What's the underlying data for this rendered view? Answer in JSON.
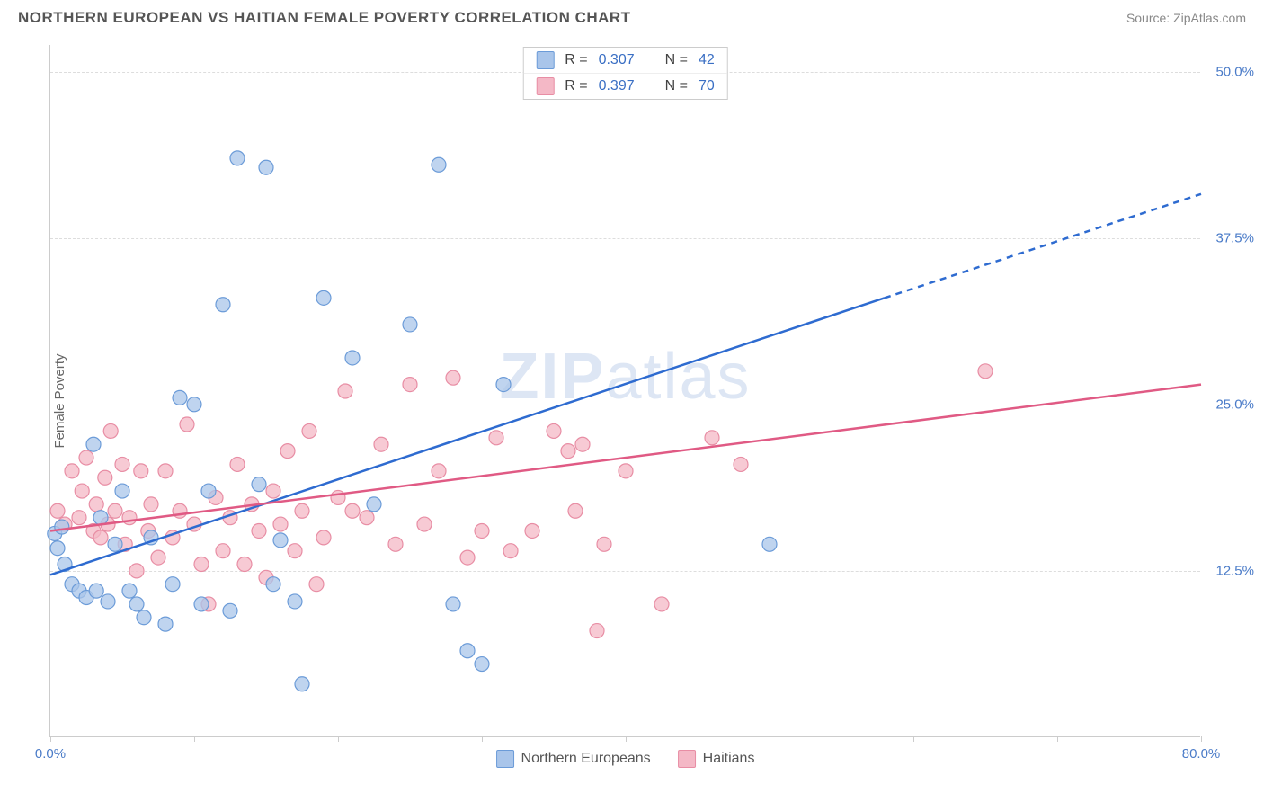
{
  "header": {
    "title": "NORTHERN EUROPEAN VS HAITIAN FEMALE POVERTY CORRELATION CHART",
    "source": "Source: ZipAtlas.com"
  },
  "chart": {
    "type": "scatter",
    "ylabel": "Female Poverty",
    "watermark_bold": "ZIP",
    "watermark_light": "atlas",
    "background_color": "#ffffff",
    "grid_color": "#dddddd",
    "axis_color": "#cccccc",
    "tick_label_color": "#4a7bc8",
    "xlim": [
      0,
      80
    ],
    "ylim": [
      0,
      52
    ],
    "xticks": [
      0,
      10,
      20,
      30,
      40,
      50,
      60,
      70,
      80
    ],
    "xtick_labels": {
      "0": "0.0%",
      "80": "80.0%"
    },
    "yticks": [
      12.5,
      25.0,
      37.5,
      50.0
    ],
    "ytick_labels": [
      "12.5%",
      "25.0%",
      "37.5%",
      "50.0%"
    ],
    "legend_top": [
      {
        "swatch_fill": "#a9c5ea",
        "swatch_stroke": "#6b9bd8",
        "r_label": "R =",
        "r_value": "0.307",
        "n_label": "N =",
        "n_value": "42"
      },
      {
        "swatch_fill": "#f4b8c6",
        "swatch_stroke": "#e88da4",
        "r_label": "R =",
        "r_value": "0.397",
        "n_label": "N =",
        "n_value": "70"
      }
    ],
    "legend_bottom": [
      {
        "swatch_fill": "#a9c5ea",
        "swatch_stroke": "#6b9bd8",
        "label": "Northern Europeans"
      },
      {
        "swatch_fill": "#f4b8c6",
        "swatch_stroke": "#e88da4",
        "label": "Haitians"
      }
    ],
    "series": [
      {
        "name": "Northern Europeans",
        "color_fill": "#a9c5ea",
        "color_stroke": "#6b9bd8",
        "marker_radius": 8,
        "marker_opacity": 0.75,
        "trend_color": "#2e6bd0",
        "trend_width": 2.5,
        "trend_solid": {
          "x1": 0,
          "y1": 12.2,
          "x2": 58,
          "y2": 33.0
        },
        "trend_dash": {
          "x1": 58,
          "y1": 33.0,
          "x2": 80,
          "y2": 40.8
        },
        "points": [
          [
            0.3,
            15.3
          ],
          [
            0.5,
            14.2
          ],
          [
            0.8,
            15.8
          ],
          [
            1.0,
            13.0
          ],
          [
            1.5,
            11.5
          ],
          [
            2.0,
            11.0
          ],
          [
            2.5,
            10.5
          ],
          [
            3.0,
            22.0
          ],
          [
            3.2,
            11.0
          ],
          [
            3.5,
            16.5
          ],
          [
            4.0,
            10.2
          ],
          [
            4.5,
            14.5
          ],
          [
            5.0,
            18.5
          ],
          [
            5.5,
            11.0
          ],
          [
            6.0,
            10.0
          ],
          [
            6.5,
            9.0
          ],
          [
            7.0,
            15.0
          ],
          [
            8.0,
            8.5
          ],
          [
            8.5,
            11.5
          ],
          [
            9.0,
            25.5
          ],
          [
            10.0,
            25.0
          ],
          [
            10.5,
            10.0
          ],
          [
            11.0,
            18.5
          ],
          [
            12.0,
            32.5
          ],
          [
            12.5,
            9.5
          ],
          [
            13.0,
            43.5
          ],
          [
            14.5,
            19.0
          ],
          [
            15.0,
            42.8
          ],
          [
            15.5,
            11.5
          ],
          [
            16.0,
            14.8
          ],
          [
            17.0,
            10.2
          ],
          [
            17.5,
            4.0
          ],
          [
            19.0,
            33.0
          ],
          [
            21.0,
            28.5
          ],
          [
            22.5,
            17.5
          ],
          [
            25.0,
            31.0
          ],
          [
            27.0,
            43.0
          ],
          [
            28.0,
            10.0
          ],
          [
            29.0,
            6.5
          ],
          [
            30.0,
            5.5
          ],
          [
            31.5,
            26.5
          ],
          [
            50.0,
            14.5
          ]
        ]
      },
      {
        "name": "Haitians",
        "color_fill": "#f4b8c6",
        "color_stroke": "#e88da4",
        "marker_radius": 8,
        "marker_opacity": 0.75,
        "trend_color": "#e05a84",
        "trend_width": 2.5,
        "trend_solid": {
          "x1": 0,
          "y1": 15.5,
          "x2": 80,
          "y2": 26.5
        },
        "trend_dash": null,
        "points": [
          [
            0.5,
            17.0
          ],
          [
            1.0,
            16.0
          ],
          [
            1.5,
            20.0
          ],
          [
            2.0,
            16.5
          ],
          [
            2.2,
            18.5
          ],
          [
            2.5,
            21.0
          ],
          [
            3.0,
            15.5
          ],
          [
            3.2,
            17.5
          ],
          [
            3.5,
            15.0
          ],
          [
            3.8,
            19.5
          ],
          [
            4.0,
            16.0
          ],
          [
            4.2,
            23.0
          ],
          [
            4.5,
            17.0
          ],
          [
            5.0,
            20.5
          ],
          [
            5.2,
            14.5
          ],
          [
            5.5,
            16.5
          ],
          [
            6.0,
            12.5
          ],
          [
            6.3,
            20.0
          ],
          [
            6.8,
            15.5
          ],
          [
            7.0,
            17.5
          ],
          [
            7.5,
            13.5
          ],
          [
            8.0,
            20.0
          ],
          [
            8.5,
            15.0
          ],
          [
            9.0,
            17.0
          ],
          [
            9.5,
            23.5
          ],
          [
            10.0,
            16.0
          ],
          [
            10.5,
            13.0
          ],
          [
            11.0,
            10.0
          ],
          [
            11.5,
            18.0
          ],
          [
            12.0,
            14.0
          ],
          [
            12.5,
            16.5
          ],
          [
            13.0,
            20.5
          ],
          [
            13.5,
            13.0
          ],
          [
            14.0,
            17.5
          ],
          [
            14.5,
            15.5
          ],
          [
            15.0,
            12.0
          ],
          [
            15.5,
            18.5
          ],
          [
            16.0,
            16.0
          ],
          [
            16.5,
            21.5
          ],
          [
            17.0,
            14.0
          ],
          [
            17.5,
            17.0
          ],
          [
            18.0,
            23.0
          ],
          [
            18.5,
            11.5
          ],
          [
            19.0,
            15.0
          ],
          [
            20.0,
            18.0
          ],
          [
            20.5,
            26.0
          ],
          [
            21.0,
            17.0
          ],
          [
            22.0,
            16.5
          ],
          [
            23.0,
            22.0
          ],
          [
            24.0,
            14.5
          ],
          [
            25.0,
            26.5
          ],
          [
            26.0,
            16.0
          ],
          [
            27.0,
            20.0
          ],
          [
            28.0,
            27.0
          ],
          [
            29.0,
            13.5
          ],
          [
            30.0,
            15.5
          ],
          [
            31.0,
            22.5
          ],
          [
            32.0,
            14.0
          ],
          [
            33.5,
            15.5
          ],
          [
            35.0,
            23.0
          ],
          [
            36.0,
            21.5
          ],
          [
            37.0,
            22.0
          ],
          [
            38.0,
            8.0
          ],
          [
            38.5,
            14.5
          ],
          [
            40.0,
            20.0
          ],
          [
            42.5,
            10.0
          ],
          [
            46.0,
            22.5
          ],
          [
            48.0,
            20.5
          ],
          [
            65.0,
            27.5
          ],
          [
            36.5,
            17.0
          ]
        ]
      }
    ]
  }
}
